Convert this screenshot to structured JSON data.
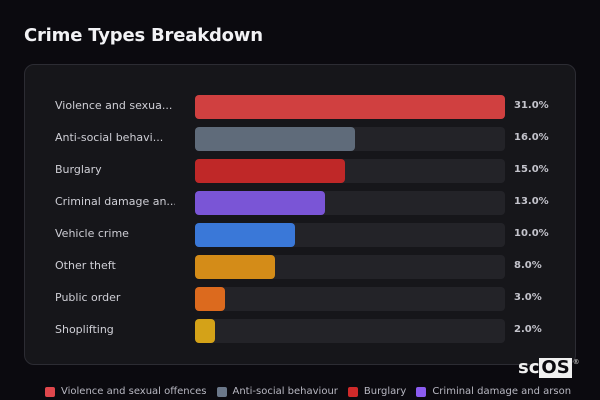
{
  "title": "Crime Types Breakdown",
  "rows": [
    {
      "label": "Violence and sexua...",
      "value": "31.0%",
      "pct": 31.0,
      "color": "#d04040"
    },
    {
      "label": "Anti-social behavi...",
      "value": "16.0%",
      "pct": 16.0,
      "color": "#5f6b7a"
    },
    {
      "label": "Burglary",
      "value": "15.0%",
      "pct": 15.0,
      "color": "#bf2828"
    },
    {
      "label": "Criminal damage an...",
      "value": "13.0%",
      "pct": 13.0,
      "color": "#7a55d6"
    },
    {
      "label": "Vehicle crime",
      "value": "10.0%",
      "pct": 10.0,
      "color": "#3a78d8"
    },
    {
      "label": "Other theft",
      "value": "8.0%",
      "pct": 8.0,
      "color": "#d48c18"
    },
    {
      "label": "Public order",
      "value": "3.0%",
      "pct": 3.0,
      "color": "#dc6a1e"
    },
    {
      "label": "Shoplifting",
      "value": "2.0%",
      "pct": 2.0,
      "color": "#d4a218"
    }
  ],
  "legend": [
    {
      "label": "Violence and sexual offences",
      "color": "#e0474c"
    },
    {
      "label": "Anti-social behaviour",
      "color": "#6b788a"
    },
    {
      "label": "Burglary",
      "color": "#d02a2a"
    },
    {
      "label": "Criminal damage and arson",
      "color": "#8b5cf0"
    }
  ],
  "watermark": {
    "prefix": "sc",
    "boxed": "OS",
    "reg": "®"
  },
  "chart_data": {
    "type": "bar",
    "orientation": "horizontal",
    "title": "Crime Types Breakdown",
    "categories": [
      "Violence and sexual offences",
      "Anti-social behaviour",
      "Burglary",
      "Criminal damage and arson",
      "Vehicle crime",
      "Other theft",
      "Public order",
      "Shoplifting"
    ],
    "display_labels": [
      "Violence and sexua...",
      "Anti-social behavi...",
      "Burglary",
      "Criminal damage an...",
      "Vehicle crime",
      "Other theft",
      "Public order",
      "Shoplifting"
    ],
    "values": [
      31.0,
      16.0,
      15.0,
      13.0,
      10.0,
      8.0,
      3.0,
      2.0
    ],
    "value_labels": [
      "31.0%",
      "16.0%",
      "15.0%",
      "13.0%",
      "10.0%",
      "8.0%",
      "3.0%",
      "2.0%"
    ],
    "colors": [
      "#d04040",
      "#5f6b7a",
      "#bf2828",
      "#7a55d6",
      "#3a78d8",
      "#d48c18",
      "#dc6a1e",
      "#d4a218"
    ],
    "xlabel": "",
    "ylabel": "",
    "xlim": [
      0,
      31
    ],
    "grid": false,
    "legend": {
      "position": "bottom",
      "entries_visible": [
        "Violence and sexual offences",
        "Anti-social behaviour",
        "Burglary",
        "Criminal damage and arson"
      ]
    }
  }
}
